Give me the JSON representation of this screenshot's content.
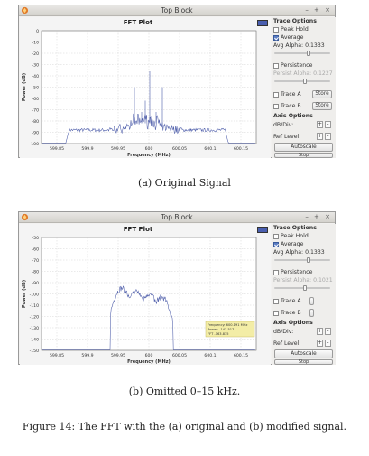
{
  "windows": [
    {
      "title": "Top Block",
      "controls": "– + ×",
      "plot": {
        "title": "FFT Plot",
        "ylabel": "Power (dB)",
        "xlabel": "Frequency (MHz)",
        "yticks": [
          "0",
          "-10",
          "-20",
          "-30",
          "-40",
          "-50",
          "-60",
          "-70",
          "-80",
          "-90",
          "-100"
        ],
        "xticks": [
          "599.85",
          "599.9",
          "599.95",
          "600",
          "600.05",
          "600.1",
          "600.15"
        ],
        "tooltip": null
      },
      "side": {
        "trace_options": "Trace Options",
        "peak_hold": "Peak Hold",
        "average": "Average",
        "avg_alpha": "Avg Alpha: 0.1333",
        "persistence": "Persistence",
        "persist_alpha": "Persist Alpha: 0.1227",
        "trace_a": "Trace A",
        "trace_b": "Trace B",
        "store": "Store",
        "axis_options": "Axis Options",
        "db_div": "dB/Div:",
        "ref_level": "Ref Level:",
        "plus": "+",
        "minus": "-",
        "autoscale": "Autoscale",
        "stop": "Stop",
        "avg_alpha_fraction": 0.62,
        "persist_alpha_fraction": 0.55
      }
    },
    {
      "title": "Top Block",
      "controls": "– + ×",
      "plot": {
        "title": "FFT Plot",
        "ylabel": "Power (dB)",
        "xlabel": "Frequency (MHz)",
        "yticks": [
          "-50",
          "-60",
          "-70",
          "-80",
          "-90",
          "-100",
          "-110",
          "-120",
          "-130",
          "-140",
          "-150"
        ],
        "xticks": [
          "599.85",
          "599.9",
          "599.95",
          "600",
          "600.05",
          "600.1",
          "600.15"
        ],
        "tooltip": [
          "Frequency: 600.191 MHz",
          "Power: -143.517",
          "FFT -163.835"
        ]
      },
      "side": {
        "trace_options": "Trace Options",
        "peak_hold": "Peak Hold",
        "average": "Average",
        "avg_alpha": "Avg Alpha: 0.1333",
        "persistence": "Persistence",
        "persist_alpha": "Persist Alpha: 0.1021",
        "trace_a": "Trace A",
        "trace_b": "Trace B",
        "store": "",
        "axis_options": "Axis Options",
        "db_div": "dB/Div:",
        "ref_level": "Ref Level:",
        "plus": "+",
        "minus": "-",
        "autoscale": "Autoscale",
        "stop": "Stop",
        "avg_alpha_fraction": 0.62,
        "persist_alpha_fraction": 0.55
      }
    }
  ],
  "captions": {
    "a": "(a) Original Signal",
    "b": "(b) Omitted 0–15 kHz.",
    "figure": "Figure 14: The FFT with the (a) original and (b) modified signal."
  },
  "colors": {
    "trace": "#4a5aa8",
    "grid": "#c9c9c9",
    "tooltip_bg": "#f3eda6"
  }
}
